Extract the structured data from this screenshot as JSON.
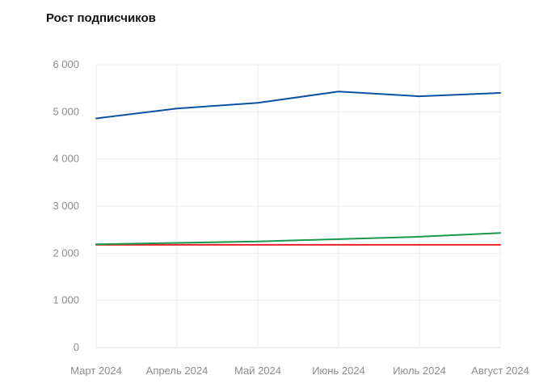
{
  "title": "Рост подписчиков",
  "chart_data": {
    "type": "line",
    "title": "Рост подписчиков",
    "xlabel": "",
    "ylabel": "",
    "categories": [
      "Март 2024",
      "Апрель 2024",
      "Май 2024",
      "Июнь 2024",
      "Июль 2024",
      "Август 2024"
    ],
    "y_ticks": [
      0,
      1000,
      2000,
      3000,
      4000,
      5000,
      6000
    ],
    "y_tick_labels": [
      "0",
      "1 000",
      "2 000",
      "3 000",
      "4 000",
      "5 000",
      "6 000"
    ],
    "ylim": [
      0,
      6000
    ],
    "grid": true,
    "legend": null,
    "series": [
      {
        "name": "series-blue",
        "color": "#0c52a0",
        "values": [
          4860,
          5070,
          5190,
          5430,
          5330,
          5400
        ]
      },
      {
        "name": "series-green",
        "color": "#1a9a4a",
        "values": [
          2190,
          2220,
          2250,
          2300,
          2350,
          2430
        ]
      },
      {
        "name": "series-red",
        "color": "#e8202a",
        "values": [
          2180,
          2180,
          2180,
          2180,
          2180,
          2180
        ]
      }
    ]
  }
}
